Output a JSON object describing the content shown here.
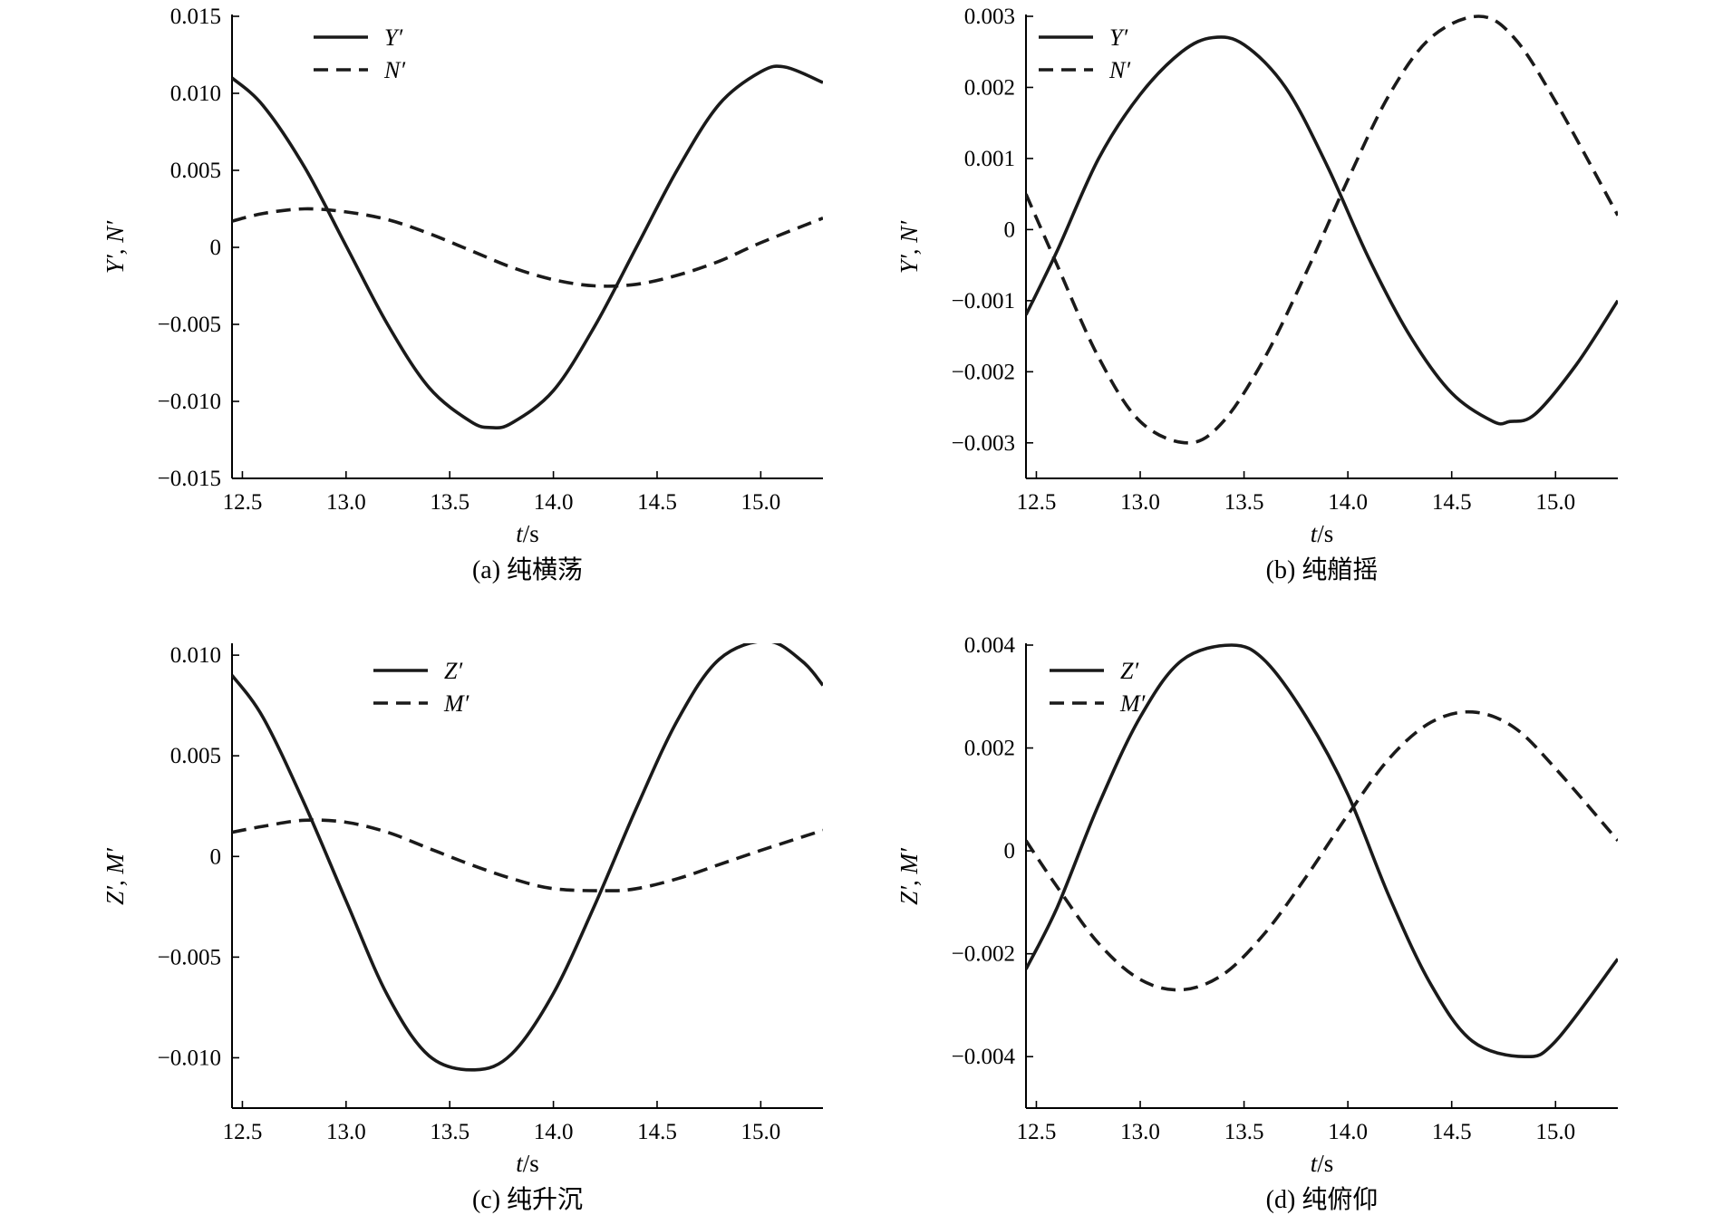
{
  "chart_data": [
    {
      "type": "line",
      "caption": "(a) 纯横荡",
      "xlabel": "t/s",
      "ylabel": "Y′, N′",
      "xlim": [
        12.45,
        15.3
      ],
      "ylim": [
        -0.015,
        0.015
      ],
      "xticks": [
        12.5,
        13.0,
        13.5,
        14.0,
        14.5,
        15.0
      ],
      "xtick_labels": [
        "12.5",
        "13.0",
        "13.5",
        "14.0",
        "14.5",
        "15.0"
      ],
      "yticks": [
        0.015,
        0.01,
        0.005,
        0,
        -0.005,
        -0.01,
        -0.015
      ],
      "ytick_labels": [
        "0.015",
        "0.010",
        "0.005",
        "0",
        "−0.005",
        "−0.010",
        "−0.015"
      ],
      "legend_position": "top-center",
      "series": [
        {
          "name": "Y′",
          "style": "solid",
          "x": [
            12.45,
            12.6,
            12.8,
            13.0,
            13.2,
            13.4,
            13.6,
            13.7,
            13.8,
            14.0,
            14.2,
            14.4,
            14.6,
            14.8,
            15.0,
            15.12,
            15.3
          ],
          "y": [
            0.011,
            0.0092,
            0.0052,
            0.0001,
            -0.005,
            -0.0091,
            -0.0113,
            -0.0117,
            -0.0114,
            -0.0093,
            -0.0051,
            0.0,
            0.0051,
            0.0093,
            0.0114,
            0.0117,
            0.0107
          ]
        },
        {
          "name": "N′",
          "style": "dashed",
          "x": [
            12.45,
            12.6,
            12.8,
            13.0,
            13.2,
            13.4,
            13.6,
            13.8,
            14.0,
            14.2,
            14.4,
            14.6,
            14.8,
            15.0,
            15.3
          ],
          "y": [
            0.0017,
            0.0022,
            0.0025,
            0.0023,
            0.0018,
            0.0009,
            -0.0002,
            -0.0013,
            -0.0021,
            -0.0025,
            -0.0024,
            -0.0018,
            -0.0009,
            0.0003,
            0.0019
          ]
        }
      ]
    },
    {
      "type": "line",
      "caption": "(b) 纯艏摇",
      "xlabel": "t/s",
      "ylabel": "Y′, N′",
      "xlim": [
        12.45,
        15.3
      ],
      "ylim": [
        -0.0035,
        0.003
      ],
      "xticks": [
        12.5,
        13.0,
        13.5,
        14.0,
        14.5,
        15.0
      ],
      "xtick_labels": [
        "12.5",
        "13.0",
        "13.5",
        "14.0",
        "14.5",
        "15.0"
      ],
      "yticks": [
        0.003,
        0.002,
        0.001,
        0,
        -0.001,
        -0.002,
        -0.003
      ],
      "ytick_labels": [
        "0.003",
        "0.002",
        "0.001",
        "0",
        "−0.001",
        "−0.002",
        "−0.003"
      ],
      "legend_position": "top-left",
      "series": [
        {
          "name": "Y′",
          "style": "solid",
          "x": [
            12.45,
            12.6,
            12.8,
            13.0,
            13.2,
            13.35,
            13.5,
            13.7,
            13.9,
            14.1,
            14.3,
            14.5,
            14.7,
            14.78,
            14.9,
            15.1,
            15.3
          ],
          "y": [
            -0.0012,
            -0.0003,
            0.001,
            0.0019,
            0.0025,
            0.0027,
            0.0026,
            0.002,
            0.0009,
            -0.0004,
            -0.0015,
            -0.0023,
            -0.0027,
            -0.0027,
            -0.0026,
            -0.0019,
            -0.001
          ]
        },
        {
          "name": "N′",
          "style": "dashed",
          "x": [
            12.45,
            12.6,
            12.8,
            13.0,
            13.23,
            13.4,
            13.6,
            13.8,
            14.0,
            14.2,
            14.4,
            14.63,
            14.8,
            15.0,
            15.3
          ],
          "y": [
            0.0005,
            -0.0005,
            -0.0018,
            -0.0027,
            -0.003,
            -0.0027,
            -0.0018,
            -0.0006,
            0.0007,
            0.0019,
            0.0027,
            0.003,
            0.0027,
            0.0018,
            0.0002
          ]
        }
      ]
    },
    {
      "type": "line",
      "caption": "(c) 纯升沉",
      "xlabel": "t/s",
      "ylabel": "Z′, M′",
      "xlim": [
        12.45,
        15.3
      ],
      "ylim": [
        -0.0125,
        0.0105
      ],
      "xticks": [
        12.5,
        13.0,
        13.5,
        14.0,
        14.5,
        15.0
      ],
      "xtick_labels": [
        "12.5",
        "13.0",
        "13.5",
        "14.0",
        "14.5",
        "15.0"
      ],
      "yticks": [
        0.01,
        0.005,
        0,
        -0.005,
        -0.01
      ],
      "ytick_labels": [
        "0.010",
        "0.005",
        "0",
        "−0.005",
        "−0.010"
      ],
      "legend_position": "top-center",
      "series": [
        {
          "name": "Z′",
          "style": "solid",
          "x": [
            12.45,
            12.6,
            12.8,
            13.0,
            13.2,
            13.4,
            13.62,
            13.8,
            14.0,
            14.2,
            14.4,
            14.6,
            14.8,
            15.03,
            15.2,
            15.3
          ],
          "y": [
            0.009,
            0.0069,
            0.0026,
            -0.0022,
            -0.0069,
            -0.0099,
            -0.0106,
            -0.0098,
            -0.0068,
            -0.0024,
            0.0024,
            0.0068,
            0.0098,
            0.0107,
            0.0097,
            0.0085
          ]
        },
        {
          "name": "M′",
          "style": "dashed",
          "x": [
            12.45,
            12.6,
            12.8,
            13.0,
            13.2,
            13.4,
            13.6,
            13.8,
            14.0,
            14.25,
            14.4,
            14.6,
            14.8,
            15.0,
            15.3
          ],
          "y": [
            0.0012,
            0.0015,
            0.0018,
            0.0017,
            0.0012,
            0.0004,
            -0.0004,
            -0.0011,
            -0.0016,
            -0.0017,
            -0.0016,
            -0.0011,
            -0.0004,
            0.0003,
            0.0013
          ]
        }
      ]
    },
    {
      "type": "line",
      "caption": "(d) 纯俯仰",
      "xlabel": "t/s",
      "ylabel": "Z′, M′",
      "xlim": [
        12.45,
        15.3
      ],
      "ylim": [
        -0.005,
        0.004
      ],
      "xticks": [
        12.5,
        13.0,
        13.5,
        14.0,
        14.5,
        15.0
      ],
      "xtick_labels": [
        "12.5",
        "13.0",
        "13.5",
        "14.0",
        "14.5",
        "15.0"
      ],
      "yticks": [
        0.004,
        0.002,
        0,
        -0.002,
        -0.004
      ],
      "ytick_labels": [
        "0.004",
        "0.002",
        "0",
        "−0.002",
        "−0.004"
      ],
      "legend_position": "top-left",
      "series": [
        {
          "name": "Z′",
          "style": "solid",
          "x": [
            12.45,
            12.6,
            12.8,
            13.0,
            13.2,
            13.44,
            13.6,
            13.8,
            14.0,
            14.2,
            14.4,
            14.6,
            14.85,
            15.0,
            15.3
          ],
          "y": [
            -0.0023,
            -0.0011,
            0.0009,
            0.0026,
            0.0037,
            0.004,
            0.0037,
            0.0026,
            0.0011,
            -0.0009,
            -0.0026,
            -0.0037,
            -0.004,
            -0.0037,
            -0.0021
          ]
        },
        {
          "name": "M′",
          "style": "dashed",
          "x": [
            12.45,
            12.6,
            12.8,
            13.0,
            13.2,
            13.4,
            13.6,
            13.8,
            14.0,
            14.2,
            14.4,
            14.6,
            14.8,
            15.0,
            15.3
          ],
          "y": [
            0.0002,
            -0.0007,
            -0.0018,
            -0.0025,
            -0.0027,
            -0.0024,
            -0.0016,
            -0.0005,
            0.0007,
            0.0018,
            0.0025,
            0.0027,
            0.0024,
            0.0016,
            0.0002
          ]
        }
      ]
    }
  ]
}
